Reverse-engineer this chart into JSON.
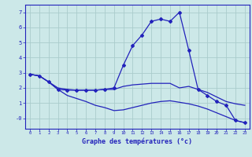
{
  "bg_color": "#cce8e8",
  "grid_color": "#aacccc",
  "line_color": "#2222bb",
  "xlim": [
    -0.5,
    23.5
  ],
  "ylim": [
    -0.7,
    7.5
  ],
  "xlabel": "Graphe des températures (°c)",
  "series": [
    {
      "x": [
        0,
        1,
        2,
        3,
        4,
        5,
        6,
        7,
        8,
        9,
        10,
        11,
        12,
        13,
        14,
        15,
        16,
        17,
        18,
        19,
        20,
        21,
        22,
        23
      ],
      "y": [
        2.9,
        2.8,
        2.4,
        2.0,
        1.9,
        1.85,
        1.85,
        1.85,
        1.9,
        1.9,
        2.1,
        2.2,
        2.25,
        2.3,
        2.3,
        2.3,
        2.0,
        2.1,
        1.9,
        1.7,
        1.4,
        1.1,
        0.95,
        0.85
      ],
      "marker": false
    },
    {
      "x": [
        0,
        1,
        2,
        3,
        4,
        5,
        6,
        7,
        8,
        9,
        10,
        11,
        12,
        13,
        14,
        15,
        16,
        17,
        18,
        19,
        20,
        21,
        22,
        23
      ],
      "y": [
        2.9,
        2.8,
        2.4,
        1.9,
        1.5,
        1.3,
        1.1,
        0.85,
        0.7,
        0.5,
        0.55,
        0.7,
        0.85,
        1.0,
        1.1,
        1.15,
        1.05,
        0.95,
        0.8,
        0.6,
        0.35,
        0.1,
        -0.15,
        -0.3
      ],
      "marker": false
    },
    {
      "x": [
        0,
        1,
        2,
        3,
        4,
        5,
        6,
        7,
        8,
        9,
        10,
        11,
        12,
        13,
        14,
        15,
        16,
        17,
        18,
        19,
        20,
        21,
        22,
        23
      ],
      "y": [
        2.9,
        2.8,
        2.4,
        1.9,
        1.85,
        1.85,
        1.85,
        1.85,
        1.9,
        2.0,
        3.5,
        4.8,
        5.5,
        6.4,
        6.55,
        6.4,
        7.0,
        4.5,
        1.9,
        1.5,
        1.1,
        0.85,
        -0.15,
        -0.3
      ],
      "marker": true
    }
  ],
  "yticks": [
    0,
    1,
    2,
    3,
    4,
    5,
    6,
    7
  ],
  "ytick_labels": [
    "-0",
    "1",
    "2",
    "3",
    "4",
    "5",
    "6",
    "7"
  ]
}
